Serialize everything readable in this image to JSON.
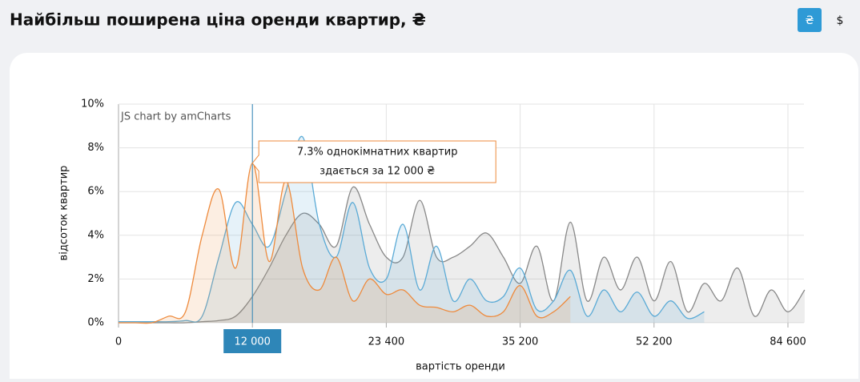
{
  "header": {
    "title": "Найбільш поширена ціна оренди квартир, ₴",
    "currency_buttons": [
      "₴",
      "$"
    ]
  },
  "chart_data": {
    "type": "area",
    "credit": "JS chart by amCharts",
    "x_label": "вартість оренди",
    "y_label": "відсоток квартир",
    "categories": [
      "0",
      null,
      null,
      null,
      null,
      null,
      null,
      null,
      "12 000",
      null,
      null,
      null,
      null,
      null,
      null,
      null,
      "23 400",
      null,
      null,
      null,
      null,
      null,
      null,
      null,
      "35 200",
      null,
      null,
      null,
      null,
      null,
      null,
      null,
      "52 200",
      null,
      null,
      null,
      null,
      null,
      null,
      null,
      "84 600",
      null
    ],
    "highlight_category": "12 000",
    "tooltip": [
      "7.3% однокімнатних квартир",
      "здається за 12 000 ₴"
    ],
    "series": [
      {
        "color": "#888888",
        "values": [
          0,
          0,
          0,
          0,
          0,
          0.05,
          0.1,
          0.3,
          1.2,
          2.5,
          4.0,
          5.0,
          4.5,
          3.5,
          6.2,
          4.5,
          3.0,
          3.0,
          5.6,
          3.0,
          3.0,
          3.5,
          4.1,
          3.0,
          1.8,
          3.5,
          1.0,
          4.6,
          1.0,
          3.0,
          1.5,
          3.0,
          1.0,
          2.8,
          0.5,
          1.8,
          1.0,
          2.5,
          0.3,
          1.5,
          0.5,
          1.5
        ]
      },
      {
        "color": "#5aaad6",
        "values": [
          0.05,
          0.05,
          0.05,
          0.05,
          0.1,
          0.3,
          3.0,
          5.5,
          4.5,
          3.5,
          6.0,
          8.5,
          4.5,
          3.0,
          5.5,
          2.5,
          2.0,
          4.5,
          1.5,
          3.5,
          1.0,
          2.0,
          1.0,
          1.2,
          2.5,
          0.6,
          1.0,
          2.4,
          0.3,
          1.5,
          0.5,
          1.4,
          0.3,
          1.0,
          0.2,
          0.5,
          null,
          null,
          null,
          null,
          null,
          null
        ]
      },
      {
        "color": "#ee8a3c",
        "values": [
          0,
          0,
          0,
          0.3,
          0.5,
          4.0,
          6.1,
          2.5,
          7.3,
          2.8,
          6.5,
          2.5,
          1.5,
          3.0,
          1.0,
          2.0,
          1.3,
          1.5,
          0.8,
          0.7,
          0.5,
          0.8,
          0.3,
          0.5,
          1.7,
          0.3,
          0.5,
          1.2,
          null,
          null,
          null,
          null,
          null,
          null,
          null,
          null,
          null,
          null,
          null,
          null,
          null,
          null
        ]
      }
    ],
    "ylim": [
      0,
      10
    ],
    "yticks": [
      {
        "value": 0,
        "label": "0%"
      },
      {
        "value": 2,
        "label": "2%"
      },
      {
        "value": 4,
        "label": "4%"
      },
      {
        "value": 6,
        "label": "6%"
      },
      {
        "value": 8,
        "label": "8%"
      },
      {
        "value": 10,
        "label": "10%"
      }
    ],
    "grid": true
  }
}
